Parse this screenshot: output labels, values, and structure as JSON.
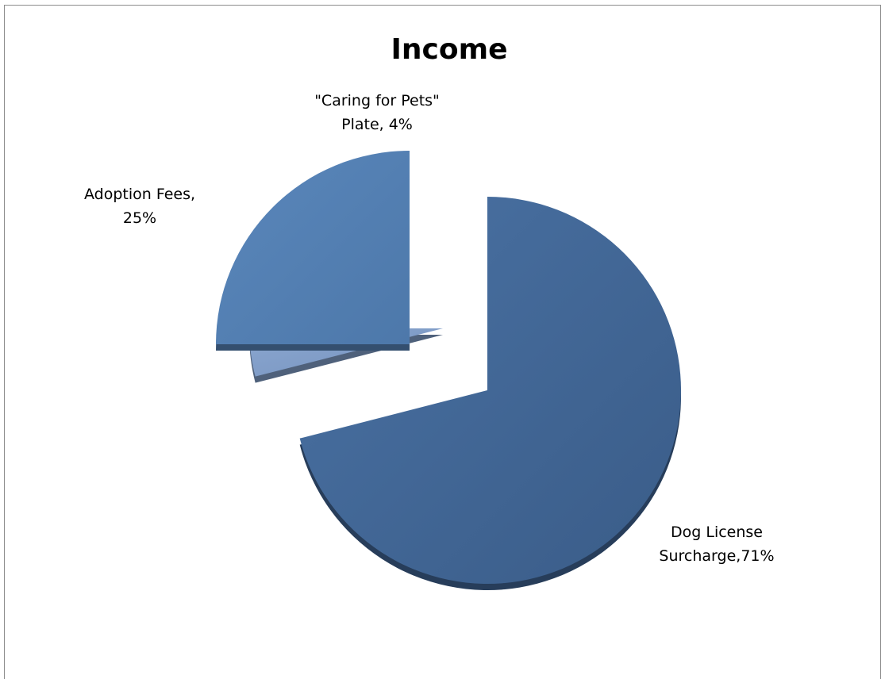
{
  "chart_data": {
    "type": "pie",
    "title": "Income",
    "exploded": true,
    "legend": "none",
    "slices": [
      {
        "category": "Dog License Surcharge",
        "value": 71,
        "label_lines": [
          "Dog License",
          "Surcharge,71%"
        ],
        "color": "#3f6391"
      },
      {
        "category": "\"Caring for Pets\" Plate",
        "value": 4,
        "label_lines": [
          "\"Caring for Pets\"",
          "Plate, 4%"
        ],
        "color": "#7f9cc7"
      },
      {
        "category": "Adoption Fees",
        "value": 25,
        "label_lines": [
          "Adoption Fees,",
          "25%"
        ],
        "color": "#5480b3"
      }
    ]
  }
}
